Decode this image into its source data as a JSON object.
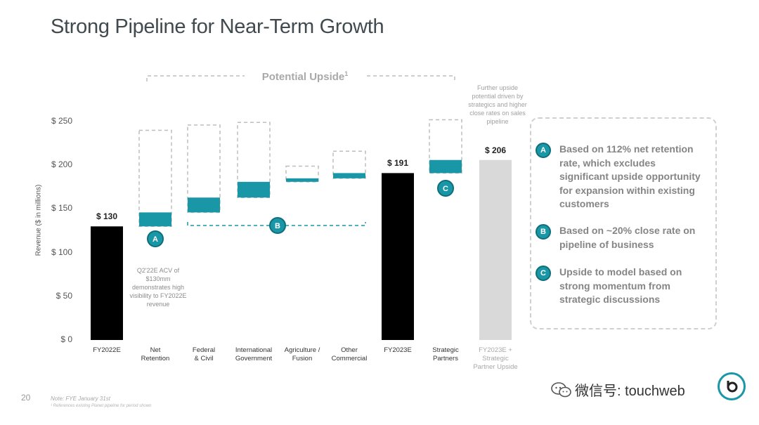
{
  "page": {
    "title": "Strong Pipeline for Near-Term Growth",
    "upside_label": "Potential Upside",
    "upside_sup": "1",
    "further_note": "Further upside potential driven by strategics and higher close rates on sales pipeline",
    "acv_note": "Q2'22E ACV of $130mm demonstrates high visibility to FY2022E revenue",
    "page_number": "20",
    "footnote": "Note: FYE January 31st",
    "footnote2": "¹ References existing Planet pipeline for period shown",
    "watermark": "微信号: touchweb"
  },
  "legend": [
    {
      "badge": "A",
      "text": "Based on 112% net retention rate, which excludes significant upside opportunity for expansion within existing customers"
    },
    {
      "badge": "B",
      "text": "Based on ~20% close rate on pipeline of business"
    },
    {
      "badge": "C",
      "text": "Upside to model based on strong momentum from strategic discussions"
    }
  ],
  "colors": {
    "teal": "#1a97a7",
    "black_bar": "#000000",
    "grey_bar": "#d9d9d9",
    "dashed": "#bdbdbd"
  },
  "icons": [
    "badge-a-icon",
    "badge-b-icon",
    "badge-c-icon",
    "wechat-icon",
    "brand-logo-icon"
  ],
  "chart_data": {
    "type": "bar",
    "subtype": "waterfall",
    "ylabel": "Revenue ($ in millions)",
    "ylim": [
      0,
      250
    ],
    "yticks": [
      "$ 0",
      "$ 50",
      "$ 100",
      "$ 150",
      "$ 200",
      "$ 250"
    ],
    "categories": [
      "FY2022E",
      "Net Retention",
      "Federal & Civil",
      "International Government",
      "Agriculture / Fusion",
      "Other Commercial",
      "FY2023E",
      "Strategic Partners",
      "FY2023E + Strategic Partner Upside"
    ],
    "category_lines": [
      [
        "FY2022E"
      ],
      [
        "Net",
        "Retention"
      ],
      [
        "Federal",
        "& Civil"
      ],
      [
        "International",
        "Government"
      ],
      [
        "Agriculture /",
        "Fusion"
      ],
      [
        "Other",
        "Commercial"
      ],
      [
        "FY2023E"
      ],
      [
        "Strategic",
        "Partners"
      ],
      [
        "FY2023E +",
        "Strategic",
        "Partner Upside"
      ]
    ],
    "bars": [
      {
        "kind": "total",
        "value": 130,
        "label": "$ 130",
        "color": "black"
      },
      {
        "kind": "delta",
        "base": 130,
        "top": 146,
        "upside_top": 240,
        "badge": "A"
      },
      {
        "kind": "delta",
        "base": 146,
        "top": 163,
        "upside_top": 246
      },
      {
        "kind": "delta",
        "base": 163,
        "top": 181,
        "upside_top": 249
      },
      {
        "kind": "delta",
        "base": 181,
        "top": 185,
        "upside_top": 199
      },
      {
        "kind": "delta",
        "base": 185,
        "top": 191,
        "upside_top": 216
      },
      {
        "kind": "total",
        "value": 191,
        "label": "$ 191",
        "color": "black"
      },
      {
        "kind": "delta",
        "base": 191,
        "top": 206,
        "upside_top": 252,
        "badge": "C"
      },
      {
        "kind": "total",
        "value": 206,
        "label": "$ 206",
        "color": "grey"
      }
    ],
    "bracket_b": {
      "value": 131,
      "badge": "B",
      "from": 2,
      "to": 5
    }
  }
}
